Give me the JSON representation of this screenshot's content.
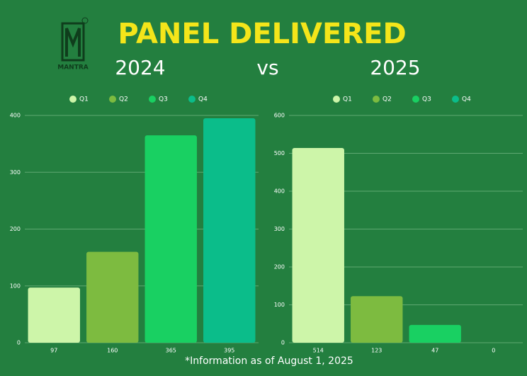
{
  "title": "PANEL DELIVERED",
  "logo": "MANTRA",
  "vs": "vs",
  "note": "*Information as of August 1, 2025",
  "chart_data": [
    {
      "type": "bar",
      "title": "2024",
      "categories": [
        "Q1",
        "Q2",
        "Q3",
        "Q4"
      ],
      "values": [
        97,
        160,
        365,
        395
      ],
      "colors": [
        "#cdf5a9",
        "#7dbb40",
        "#19d062",
        "#0bbd8a"
      ],
      "ylim": [
        0,
        400
      ],
      "yticks": [
        0,
        100,
        200,
        300,
        400
      ],
      "grid": true
    },
    {
      "type": "bar",
      "title": "2025",
      "categories": [
        "Q1",
        "Q2",
        "Q3",
        "Q4"
      ],
      "values": [
        514,
        123,
        47,
        0
      ],
      "colors": [
        "#cdf5a9",
        "#7dbb40",
        "#19d062",
        "#0bbd8a"
      ],
      "ylim": [
        0,
        600
      ],
      "yticks": [
        0,
        100,
        200,
        300,
        400,
        500,
        600
      ],
      "grid": true
    }
  ]
}
